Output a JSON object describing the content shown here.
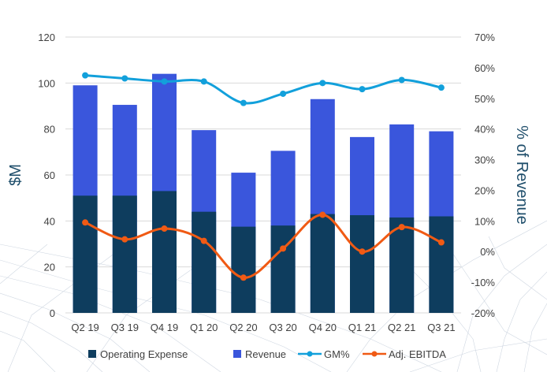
{
  "chart_data": {
    "type": "bar",
    "categories": [
      "Q2 19",
      "Q3 19",
      "Q4 19",
      "Q1 20",
      "Q2 20",
      "Q3 20",
      "Q4 20",
      "Q1 21",
      "Q2 21",
      "Q3 21"
    ],
    "series": [
      {
        "name": "Operating Expense",
        "kind": "bar",
        "axis": "left",
        "color": "#0e3d5e",
        "values": [
          51,
          51,
          53,
          44,
          37.5,
          38,
          43,
          42.5,
          41.5,
          42
        ]
      },
      {
        "name": "Revenue",
        "kind": "bar",
        "axis": "left",
        "color": "#3a56dc",
        "values": [
          99,
          90.5,
          104,
          79.5,
          61,
          70.5,
          93,
          76.5,
          82,
          79
        ]
      },
      {
        "name": "GM%",
        "kind": "line",
        "axis": "right",
        "color": "#12a0db",
        "values": [
          57.5,
          56.5,
          55.5,
          55.5,
          48.5,
          51.5,
          55,
          53,
          56,
          53.5
        ]
      },
      {
        "name": "Adj. EBITDA",
        "kind": "line",
        "axis": "right",
        "color": "#f05a14",
        "values": [
          9.5,
          4,
          7.5,
          3.5,
          -8.5,
          1,
          12,
          0,
          8,
          3
        ]
      }
    ],
    "left_axis": {
      "title": "$M",
      "range": [
        0,
        120
      ],
      "ticks": [
        "0",
        "20",
        "40",
        "60",
        "80",
        "100",
        "120"
      ]
    },
    "right_axis": {
      "title": "% of Revenue",
      "range": [
        -20,
        70
      ],
      "ticks": [
        "-20%",
        "-10%",
        "0%",
        "10%",
        "20%",
        "30%",
        "40%",
        "50%",
        "60%",
        "70%"
      ]
    },
    "gridlines": true,
    "legend": "bottom"
  }
}
